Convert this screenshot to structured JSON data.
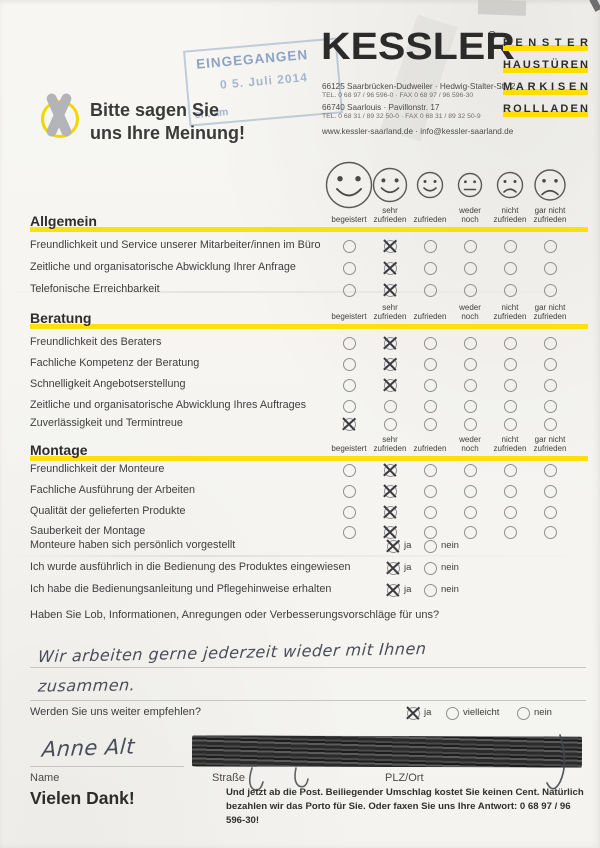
{
  "stamp": {
    "line1": "EINGEGANGEN",
    "line2": "0 5. Juli 2014",
    "line3": "erl. am"
  },
  "brand": {
    "logo": "KESSLER",
    "reg": "®",
    "services": [
      "FENSTER",
      "HAUSTÜREN",
      "MARKISEN",
      "ROLLLADEN"
    ],
    "address1": "66125 Saarbrücken-Dudweiler · Hedwig-Stalter-Str. 2",
    "phone1": "TEL. 0 68 97 / 96 596-0 · FAX 0 68 97 / 96 596-30",
    "address2": "66740 Saarlouis · Pavillonstr. 17",
    "phone2": "TEL. 0 68 31 / 89 32 50-0 · FAX 0 68 31 / 89 32 50-9",
    "web": "www.kessler-saarland.de · info@kessler-saarland.de"
  },
  "tagline": {
    "line1": "Bitte sagen Sie",
    "line2": "uns Ihre Meinung!"
  },
  "scale": {
    "labels": [
      [
        "begeistert"
      ],
      [
        "sehr",
        "zufrieden"
      ],
      [
        "zufrieden"
      ],
      [
        "weder",
        "noch"
      ],
      [
        "nicht",
        "zufrieden"
      ],
      [
        "gar nicht",
        "zufrieden"
      ]
    ],
    "smileys": [
      "very-happy",
      "happy",
      "slightly-happy",
      "neutral",
      "unhappy",
      "very-unhappy"
    ]
  },
  "sections": [
    {
      "title": "Allgemein",
      "rows": [
        {
          "label": "Freundlichkeit und Service unserer Mitarbeiter/innen im Büro",
          "checked": 1
        },
        {
          "label": "Zeitliche und organisatorische Abwicklung Ihrer Anfrage",
          "checked": 1
        },
        {
          "label": "Telefonische Erreichbarkeit",
          "checked": 1
        }
      ]
    },
    {
      "title": "Beratung",
      "rows": [
        {
          "label": "Freundlichkeit des Beraters",
          "checked": 1
        },
        {
          "label": "Fachliche Kompetenz der Beratung",
          "checked": 1
        },
        {
          "label": "Schnelligkeit Angebotserstellung",
          "checked": 1
        },
        {
          "label": "Zeitliche und organisatorische Abwicklung Ihres Auftrages",
          "checked": null
        },
        {
          "label": "Zuverlässigkeit und Termintreue",
          "checked": 0
        }
      ]
    },
    {
      "title": "Montage",
      "rows": [
        {
          "label": "Freundlichkeit der Monteure",
          "checked": 1
        },
        {
          "label": "Fachliche Ausführung der Arbeiten",
          "checked": 1
        },
        {
          "label": "Qualität der gelieferten Produkte",
          "checked": 1
        },
        {
          "label": "Sauberkeit der Montage",
          "checked": 1
        }
      ]
    }
  ],
  "yes_no": {
    "options": [
      "ja",
      "nein"
    ],
    "questions": [
      {
        "label": "Monteure haben sich persönlich vorgestellt",
        "answer": "ja"
      },
      {
        "label": "Ich wurde ausführlich in die Bedienung des Produktes eingewiesen",
        "answer": "ja"
      },
      {
        "label": "Ich habe die Bedienungsanleitung und Pflegehinweise erhalten",
        "answer": "ja"
      }
    ]
  },
  "feedback": {
    "question": "Haben Sie Lob, Informationen, Anregungen oder Verbesserungsvorschläge für uns?",
    "handwritten": [
      "Wir arbeiten gerne jederzeit wieder mit Ihnen",
      "zusammen."
    ]
  },
  "recommend": {
    "question": "Werden Sie uns weiter empfehlen?",
    "options": [
      "ja",
      "vielleicht",
      "nein"
    ],
    "answer": "ja"
  },
  "signature": {
    "name_value": "Anne Alt",
    "labels": {
      "name": "Name",
      "street": "Straße",
      "plz": "PLZ/Ort"
    }
  },
  "footer": {
    "thanks": "Vielen Dank!",
    "note": "Und jetzt ab die Post. Beiliegender Umschlag kostet Sie keinen Cent. Natürlich bezahlen wir das Porto für Sie. Oder faxen Sie uns Ihre Antwort: 0 68 97 / 96 596-30!"
  },
  "colors": {
    "highlight": "#ffdd00",
    "stamp": "#8aa4c6",
    "ink": "#3d3d42",
    "handwriting": "#4a4e58"
  }
}
